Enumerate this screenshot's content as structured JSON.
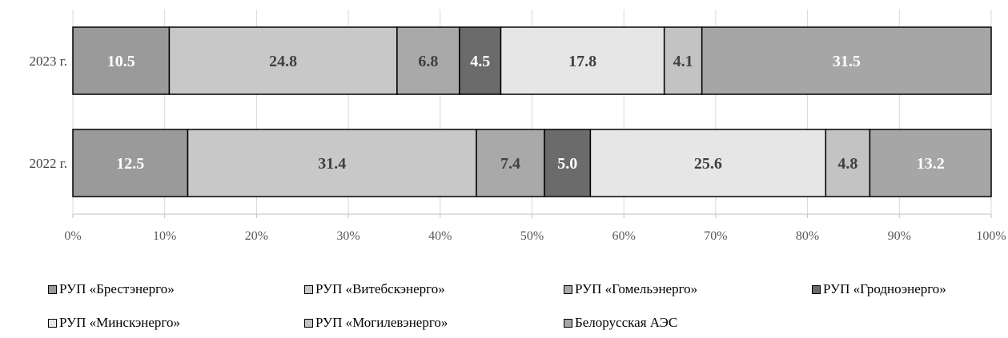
{
  "chart_data": {
    "type": "bar",
    "orientation": "horizontal",
    "stacked": "percent",
    "categories": [
      "2023 г.",
      "2022 г."
    ],
    "series": [
      {
        "name": "РУП «Брестэнерго»",
        "values": [
          10.5,
          12.5
        ],
        "color": "#9a9a9a",
        "label_color": "#ffffff"
      },
      {
        "name": "РУП «Витебскэнерго»",
        "values": [
          24.8,
          31.4
        ],
        "color": "#c8c8c8",
        "label_color": "#404040"
      },
      {
        "name": "РУП «Гомельэнерго»",
        "values": [
          6.8,
          7.4
        ],
        "color": "#a9a9a9",
        "label_color": "#404040"
      },
      {
        "name": "РУП «Гродноэнерго»",
        "values": [
          4.5,
          5.0
        ],
        "color": "#6b6b6b",
        "label_color": "#ffffff"
      },
      {
        "name": "РУП «Минскэнерго»",
        "values": [
          17.8,
          25.6
        ],
        "color": "#e6e6e6",
        "label_color": "#404040"
      },
      {
        "name": "РУП «Могилевэнерго»",
        "values": [
          4.1,
          4.8
        ],
        "color": "#c3c3c3",
        "label_color": "#404040"
      },
      {
        "name": "Белорусская АЭС",
        "values": [
          31.5,
          13.2
        ],
        "color": "#a6a6a6",
        "label_color": "#ffffff"
      }
    ],
    "x_ticks": [
      "0%",
      "10%",
      "20%",
      "30%",
      "40%",
      "50%",
      "60%",
      "70%",
      "80%",
      "90%",
      "100%"
    ],
    "xlim": [
      0,
      100
    ],
    "grid": "vertical",
    "legend": "bottom"
  }
}
